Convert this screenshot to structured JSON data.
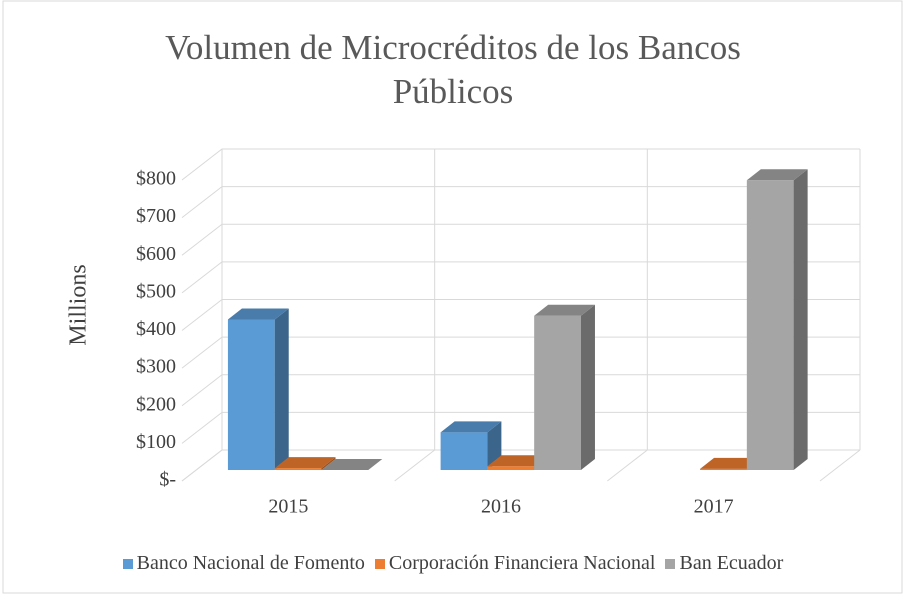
{
  "chart_data": {
    "type": "bar3d",
    "title": "Volumen de Microcréditos de los Bancos Públicos",
    "y_label": "Millions",
    "categories": [
      "2015",
      "2016",
      "2017"
    ],
    "series": [
      {
        "name": "Banco Nacional de Fomento",
        "color": "#5b9bd5",
        "values": [
          400,
          100,
          null
        ]
      },
      {
        "name": "Corporación Financiera Nacional",
        "color": "#ed7d31",
        "values": [
          5,
          10,
          3
        ]
      },
      {
        "name": "Ban Ecuador",
        "color": "#a5a5a5",
        "values": [
          0,
          410,
          770
        ]
      }
    ],
    "ylim": [
      0,
      800
    ],
    "yticks": [
      {
        "value": 0,
        "label": "$-"
      },
      {
        "value": 100,
        "label": "$100"
      },
      {
        "value": 200,
        "label": "$200"
      },
      {
        "value": 300,
        "label": "$300"
      },
      {
        "value": 400,
        "label": "$400"
      },
      {
        "value": 500,
        "label": "$500"
      },
      {
        "value": 600,
        "label": "$600"
      },
      {
        "value": 700,
        "label": "$700"
      },
      {
        "value": 800,
        "label": "$800"
      }
    ],
    "grid": true
  }
}
